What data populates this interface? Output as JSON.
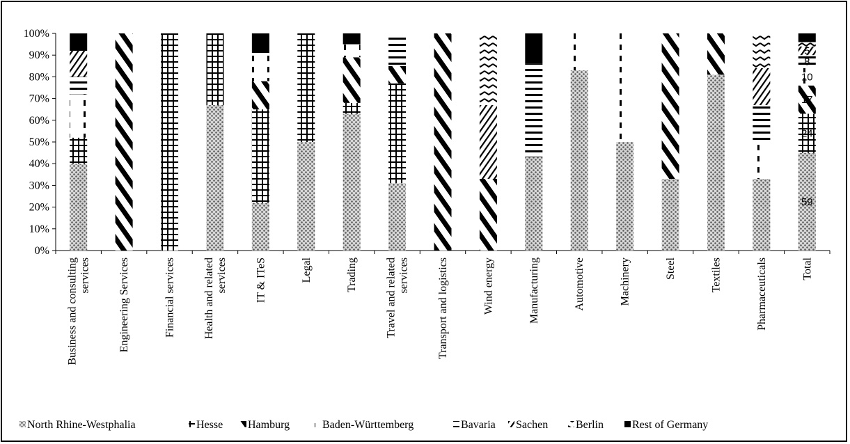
{
  "chart_data": {
    "type": "bar",
    "stacked": true,
    "normalized": true,
    "title": "",
    "xlabel": "",
    "ylabel": "",
    "ylim": [
      0,
      100
    ],
    "yticks": [
      "0%",
      "10%",
      "20%",
      "30%",
      "40%",
      "50%",
      "60%",
      "70%",
      "80%",
      "90%",
      "100%"
    ],
    "grid": false,
    "legend_position": "bottom",
    "categories": [
      "Business and consulting services",
      "Engineering Services",
      "Financial services",
      "Health and related services",
      "IT & ITeS",
      "Legal",
      "Trading",
      "Travel and related services",
      "Transport and logistics",
      "Wind energy",
      "Manufacturing",
      "Automotive",
      "Machinery",
      "Steel",
      "Textiles",
      "Pharmaceuticals",
      "Total"
    ],
    "series": [
      {
        "name": "North Rhine-Westphalia",
        "pattern": "dots",
        "values": [
          40,
          0,
          0,
          67,
          22,
          50,
          63,
          31,
          0,
          0,
          43,
          83,
          50,
          33,
          81,
          33,
          45
        ]
      },
      {
        "name": "Hesse",
        "pattern": "grid",
        "values": [
          12,
          0,
          100,
          33,
          43,
          50,
          5,
          46,
          0,
          0,
          0,
          0,
          0,
          0,
          0,
          0,
          18
        ]
      },
      {
        "name": "Hamburg",
        "pattern": "diagonal",
        "values": [
          0,
          100,
          0,
          0,
          13,
          0,
          21,
          8,
          100,
          33,
          0,
          0,
          0,
          67,
          19,
          0,
          13
        ]
      },
      {
        "name": "Baden-Württemberg",
        "pattern": "dashes",
        "values": [
          20,
          0,
          0,
          0,
          13,
          0,
          6,
          0,
          0,
          0,
          0,
          17,
          50,
          0,
          0,
          17,
          8
        ]
      },
      {
        "name": "Bavaria",
        "pattern": "horizontal",
        "values": [
          8,
          0,
          0,
          0,
          0,
          0,
          0,
          15,
          0,
          0,
          43,
          0,
          0,
          0,
          0,
          17,
          6
        ]
      },
      {
        "name": "Sachen",
        "pattern": "back-diagonal",
        "values": [
          12,
          0,
          0,
          0,
          0,
          0,
          0,
          0,
          0,
          34,
          0,
          0,
          0,
          0,
          0,
          17,
          4
        ]
      },
      {
        "name": "Berlin",
        "pattern": "zigzag",
        "values": [
          0,
          0,
          0,
          0,
          0,
          0,
          0,
          0,
          0,
          33,
          0,
          0,
          0,
          0,
          0,
          16,
          2
        ]
      },
      {
        "name": "Rest of Germany",
        "pattern": "solid",
        "values": [
          8,
          0,
          0,
          0,
          9,
          0,
          5,
          0,
          0,
          0,
          14,
          0,
          0,
          0,
          0,
          0,
          4
        ]
      }
    ],
    "data_labels": {
      "category": "Total",
      "labels": [
        {
          "series": "North Rhine-Westphalia",
          "text": "59"
        },
        {
          "series": "Hesse",
          "text": "24"
        },
        {
          "series": "Hamburg",
          "text": "17"
        },
        {
          "series": "Baden-Württemberg",
          "text": "10"
        },
        {
          "series": "Bavaria",
          "text": "8"
        },
        {
          "series": "Sachen",
          "text": "5"
        }
      ]
    }
  }
}
